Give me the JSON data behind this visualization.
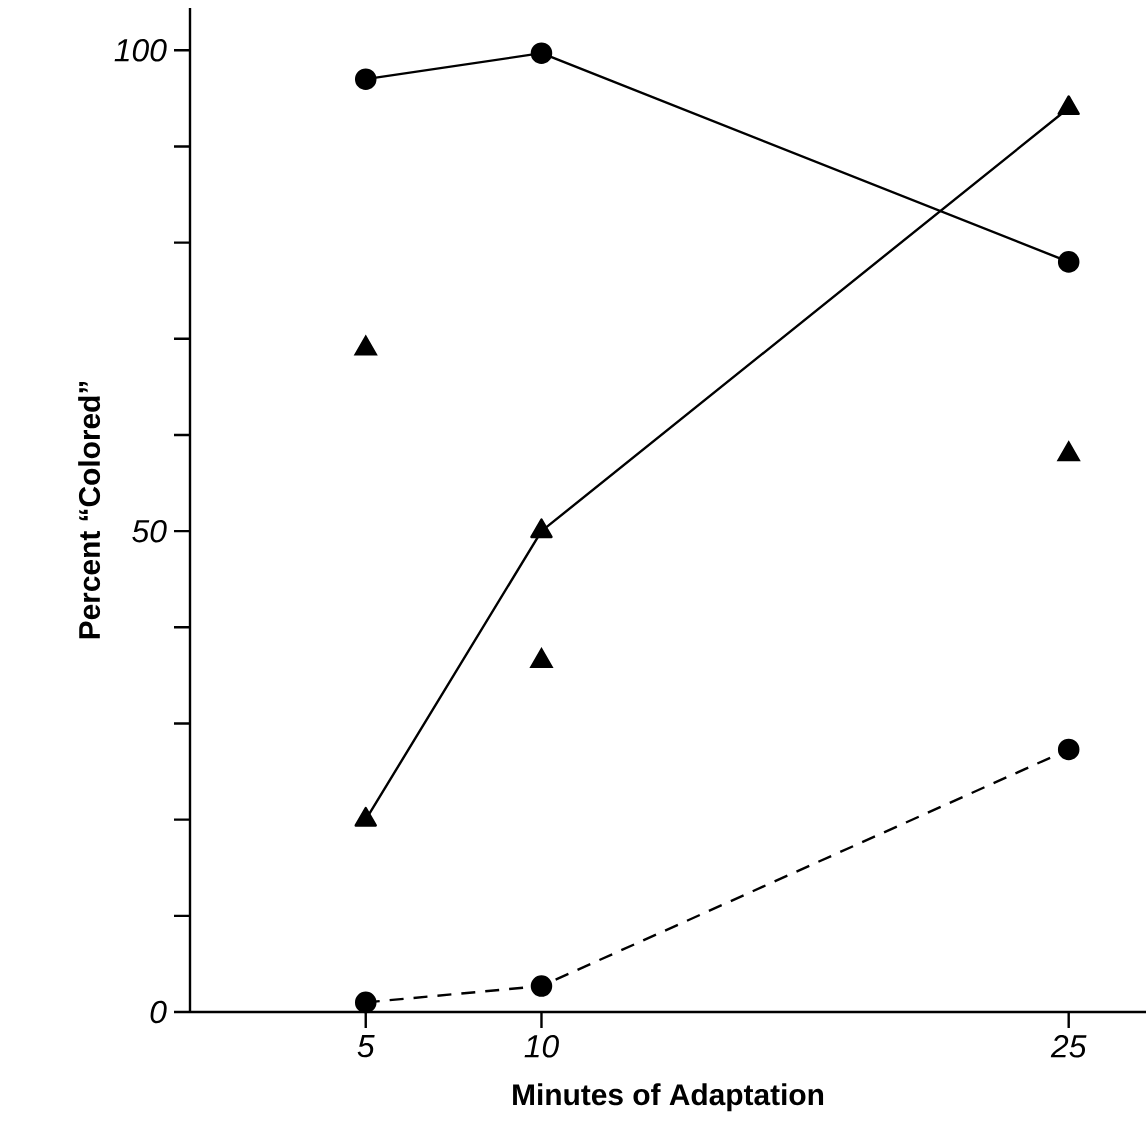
{
  "chart_data": {
    "type": "line",
    "xlabel": "Minutes of Adaptation",
    "ylabel": "Percent “Colored”",
    "x": [
      5,
      10,
      25
    ],
    "xlim": [
      0,
      27.2
    ],
    "ylim": [
      0,
      104.4
    ],
    "xticks": [
      5,
      10,
      25
    ],
    "yticks": [
      0,
      {
        "value": 10,
        "label": null
      },
      {
        "value": 20,
        "label": null
      },
      {
        "value": 30,
        "label": null
      },
      {
        "value": 40,
        "label": null
      },
      50,
      {
        "value": 60,
        "label": null
      },
      {
        "value": 70,
        "label": null
      },
      {
        "value": 80,
        "label": null
      },
      {
        "value": 90,
        "label": null
      },
      100
    ],
    "series": [
      {
        "marker": "circle",
        "line_style": "solid",
        "color": "#000000",
        "values": [
          97,
          99.7,
          78
        ]
      },
      {
        "marker": "triangle",
        "line_style": "solid",
        "color": "#000000",
        "values": [
          20,
          50,
          94
        ]
      },
      {
        "type": "scatter",
        "marker": "triangle",
        "color": "#000000",
        "values": [
          69,
          36.5,
          58
        ]
      },
      {
        "marker": "circle",
        "line_style": "dashed",
        "color": "#000000",
        "values": [
          1,
          2.7,
          27.3
        ]
      }
    ]
  }
}
